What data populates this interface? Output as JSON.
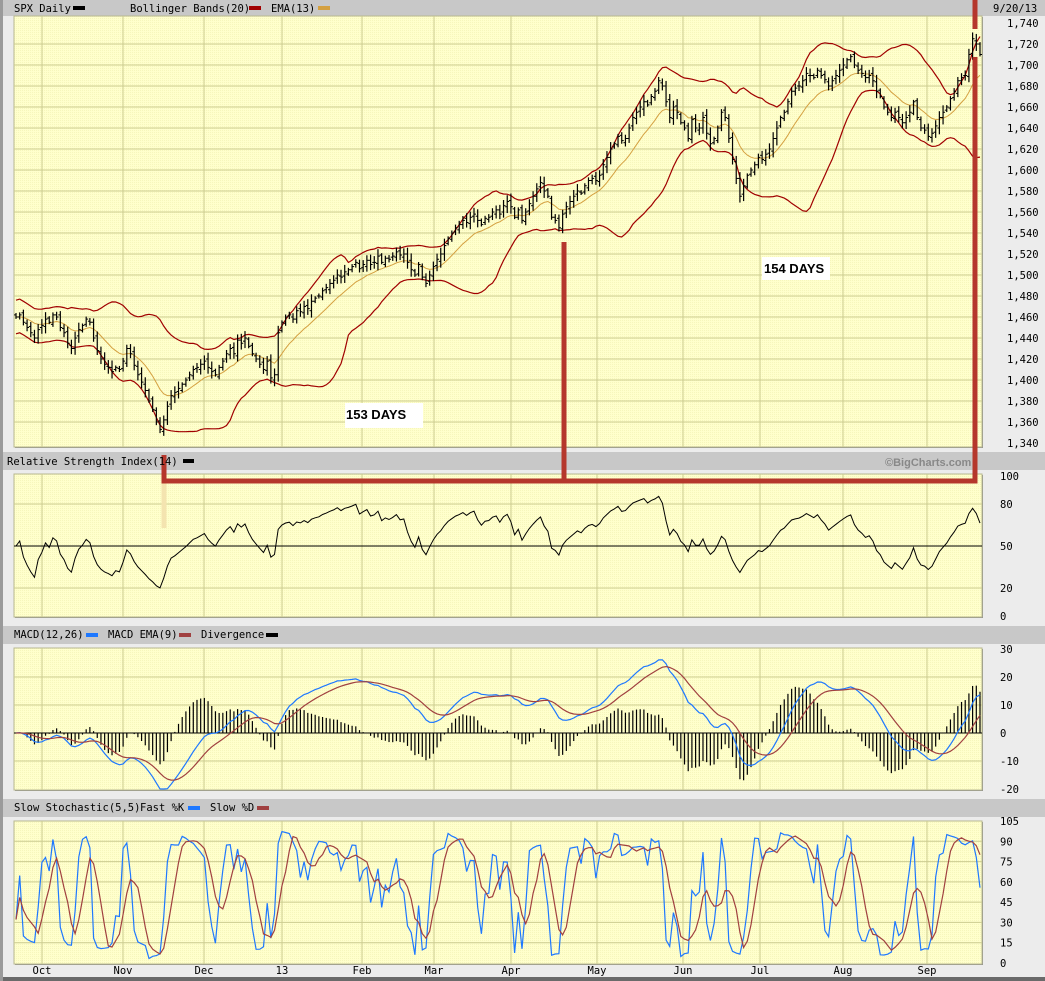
{
  "header": {
    "date": "9/20/13",
    "copyright": "©BigCharts.com"
  },
  "chart_data": [
    {
      "type": "ohlc",
      "title": "SPX Daily",
      "legend": [
        {
          "name": "SPX Daily",
          "color": "#000000"
        },
        {
          "name": "Bollinger Bands(20)",
          "color": "#a00000"
        },
        {
          "name": "EMA(13)",
          "color": "#d4a040"
        }
      ],
      "ylim": [
        1340,
        1740
      ],
      "yticks": [
        "1,740",
        "1,720",
        "1,700",
        "1,680",
        "1,660",
        "1,640",
        "1,620",
        "1,600",
        "1,580",
        "1,560",
        "1,540",
        "1,520",
        "1,500",
        "1,480",
        "1,460",
        "1,440",
        "1,420",
        "1,400",
        "1,380",
        "1,360",
        "1,340"
      ],
      "xticks": [
        "Oct",
        "Nov",
        "Dec",
        "13",
        "Feb",
        "Mar",
        "Apr",
        "May",
        "Jun",
        "Jul",
        "Aug",
        "Sep"
      ],
      "grid": true,
      "closes": [
        1460,
        1462,
        1455,
        1450,
        1445,
        1440,
        1448,
        1452,
        1458,
        1455,
        1462,
        1460,
        1450,
        1445,
        1435,
        1430,
        1440,
        1448,
        1452,
        1458,
        1455,
        1440,
        1428,
        1420,
        1415,
        1412,
        1408,
        1412,
        1410,
        1418,
        1430,
        1425,
        1414,
        1405,
        1398,
        1390,
        1380,
        1372,
        1360,
        1353,
        1362,
        1375,
        1385,
        1388,
        1392,
        1396,
        1400,
        1405,
        1410,
        1412,
        1415,
        1418,
        1412,
        1408,
        1405,
        1412,
        1418,
        1425,
        1430,
        1425,
        1438,
        1435,
        1440,
        1432,
        1425,
        1420,
        1415,
        1410,
        1418,
        1402,
        1405,
        1445,
        1455,
        1460,
        1462,
        1458,
        1466,
        1465,
        1470,
        1468,
        1475,
        1478,
        1480,
        1485,
        1488,
        1492,
        1495,
        1500,
        1498,
        1503,
        1505,
        1508,
        1512,
        1506,
        1510,
        1514,
        1510,
        1512,
        1518,
        1512,
        1516,
        1515,
        1518,
        1522,
        1519,
        1520,
        1512,
        1505,
        1500,
        1510,
        1498,
        1492,
        1500,
        1508,
        1515,
        1520,
        1528,
        1535,
        1540,
        1545,
        1548,
        1552,
        1550,
        1555,
        1558,
        1552,
        1548,
        1554,
        1555,
        1560,
        1562,
        1558,
        1566,
        1570,
        1565,
        1555,
        1562,
        1552,
        1560,
        1568,
        1575,
        1582,
        1588,
        1580,
        1575,
        1555,
        1552,
        1545,
        1558,
        1565,
        1570,
        1575,
        1580,
        1578,
        1585,
        1590,
        1592,
        1590,
        1595,
        1605,
        1612,
        1620,
        1625,
        1632,
        1628,
        1630,
        1640,
        1650,
        1655,
        1660,
        1665,
        1662,
        1670,
        1675,
        1685,
        1680,
        1665,
        1650,
        1660,
        1655,
        1645,
        1640,
        1630,
        1648,
        1640,
        1640,
        1650,
        1635,
        1625,
        1630,
        1640,
        1655,
        1650,
        1630,
        1610,
        1592,
        1575,
        1585,
        1595,
        1600,
        1605,
        1612,
        1610,
        1615,
        1620,
        1630,
        1640,
        1650,
        1655,
        1665,
        1675,
        1678,
        1680,
        1685,
        1692,
        1690,
        1688,
        1695,
        1690,
        1686,
        1680,
        1685,
        1690,
        1695,
        1700,
        1705,
        1708,
        1700,
        1695,
        1692,
        1688,
        1690,
        1685,
        1675,
        1670,
        1660,
        1655,
        1650,
        1655,
        1650,
        1645,
        1650,
        1655,
        1665,
        1650,
        1640,
        1638,
        1632,
        1635,
        1642,
        1650,
        1655,
        1660,
        1668,
        1675,
        1685,
        1688,
        1690,
        1710,
        1725,
        1720,
        1710
      ],
      "annotations": [
        "153 DAYS",
        "154 DAYS"
      ]
    },
    {
      "type": "line",
      "title": "Relative Strength Index(14)",
      "legend": [
        {
          "name": "Relative Strength Index(14)",
          "color": "#000000"
        }
      ],
      "ylim": [
        0,
        100
      ],
      "yticks": [
        "100",
        "80",
        "50",
        "20",
        "0"
      ]
    },
    {
      "type": "line",
      "title": "MACD",
      "legend": [
        {
          "name": "MACD(12,26)",
          "color": "#1e78ff"
        },
        {
          "name": "MACD EMA(9)",
          "color": "#a04040"
        },
        {
          "name": "Divergence",
          "color": "#000000"
        }
      ],
      "ylim": [
        -20,
        30
      ],
      "yticks": [
        "30",
        "20",
        "10",
        "0",
        "-10",
        "-20"
      ]
    },
    {
      "type": "line",
      "title": "Slow Stochastic(5,5)",
      "legend": [
        {
          "name": "Slow Stochastic(5,5)",
          "color": null
        },
        {
          "name": "Fast %K",
          "color": "#1e78ff"
        },
        {
          "name": "Slow %D",
          "color": "#a04040"
        }
      ],
      "ylim": [
        0,
        105
      ],
      "yticks": [
        "105",
        "90",
        "75",
        "60",
        "45",
        "30",
        "15",
        "0"
      ]
    }
  ]
}
